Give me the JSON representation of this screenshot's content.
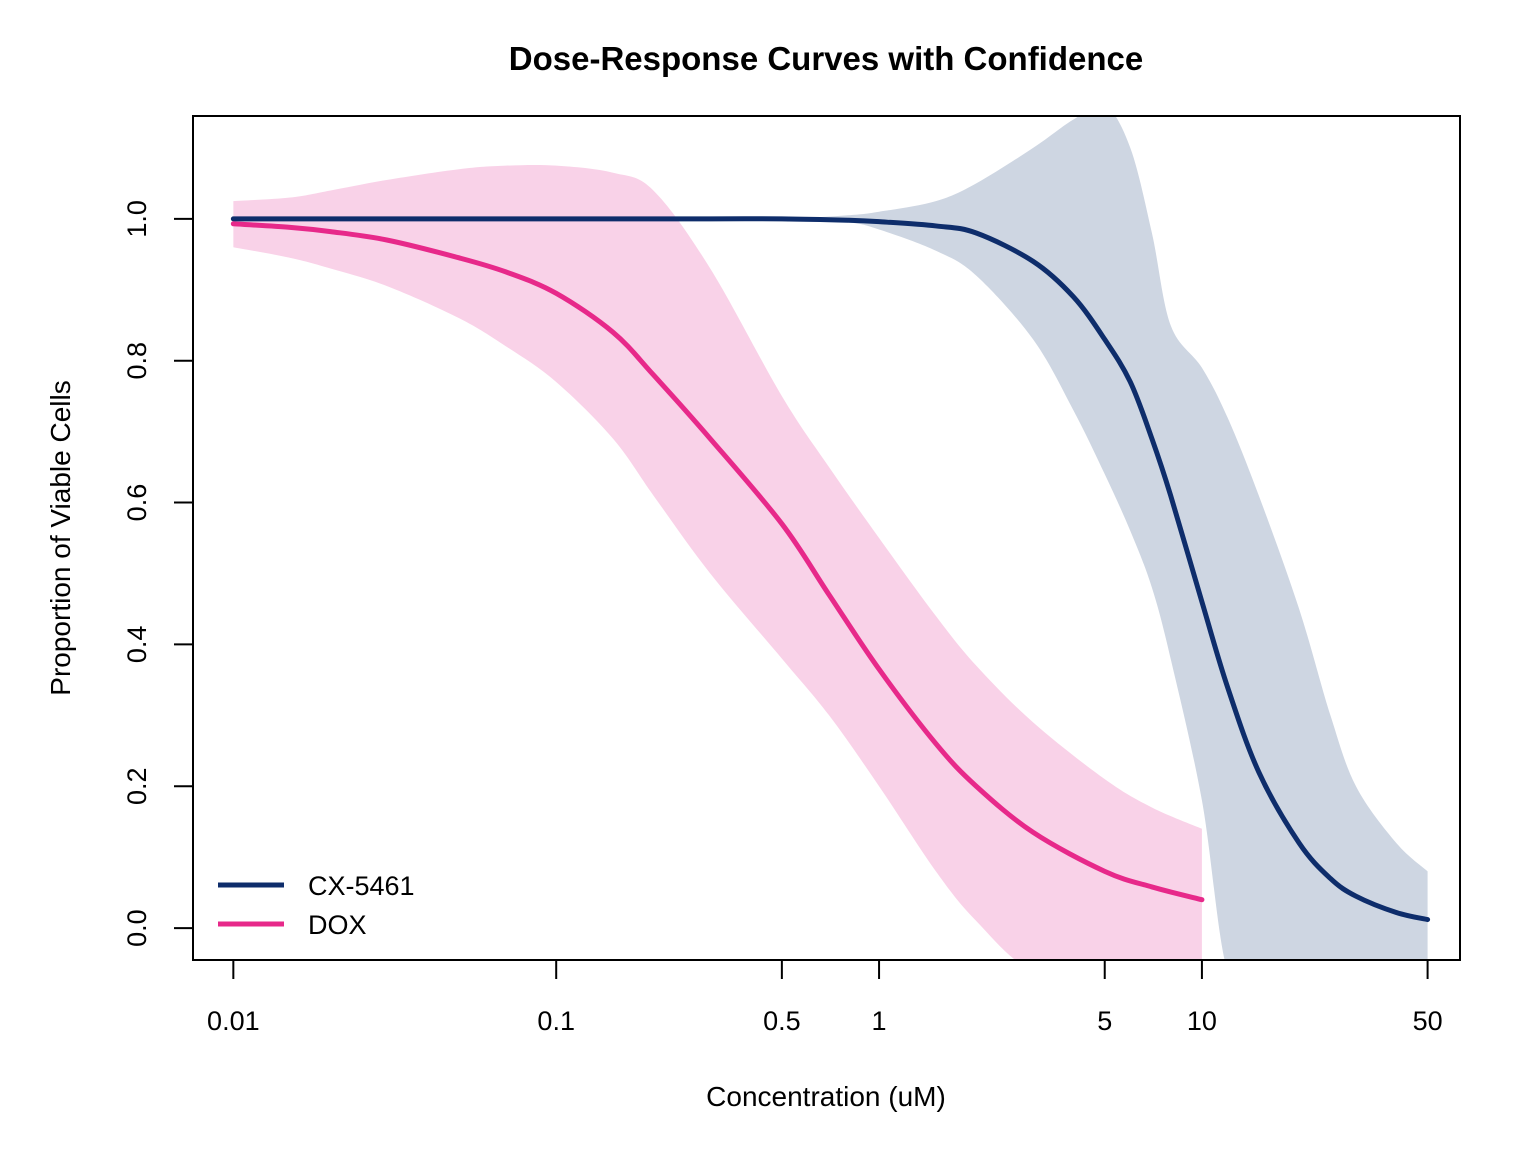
{
  "chart_data": {
    "type": "line",
    "title": "Dose-Response Curves with Confidence",
    "xlabel": "Concentration (uM)",
    "ylabel": "Proportion of Viable Cells",
    "x_scale": "log",
    "xlim": [
      0.0075,
      63
    ],
    "ylim": [
      -0.045,
      1.145
    ],
    "x_ticks": [
      0.01,
      0.1,
      0.5,
      1,
      5,
      10,
      50
    ],
    "x_tick_labels": [
      "0.01",
      "0.1",
      "0.5",
      "1",
      "5",
      "10",
      "50"
    ],
    "y_ticks": [
      0.0,
      0.2,
      0.4,
      0.6,
      0.8,
      1.0
    ],
    "y_tick_labels": [
      "0.0",
      "0.2",
      "0.4",
      "0.6",
      "0.8",
      "1.0"
    ],
    "grid": false,
    "legend_position": "bottom-left",
    "series": [
      {
        "name": "CX-5461",
        "color": "#0e2d6b",
        "band_color": "#ced6e2",
        "x": [
          0.01,
          0.1,
          0.3,
          0.5,
          0.8,
          1,
          1.5,
          2,
          3,
          4,
          5,
          6,
          7,
          8,
          10,
          12,
          15,
          20,
          25,
          30,
          40,
          50
        ],
        "y": [
          1.0,
          1.0,
          1.0,
          1.0,
          0.998,
          0.996,
          0.99,
          0.98,
          0.94,
          0.89,
          0.83,
          0.77,
          0.69,
          0.61,
          0.46,
          0.34,
          0.22,
          0.12,
          0.07,
          0.045,
          0.022,
          0.012
        ],
        "lower": [
          1.0,
          1.0,
          1.0,
          1.0,
          0.995,
          0.985,
          0.955,
          0.92,
          0.83,
          0.73,
          0.64,
          0.56,
          0.48,
          0.38,
          0.18,
          -0.06,
          -0.06,
          -0.06,
          -0.06,
          -0.06,
          -0.06,
          -0.06
        ],
        "upper": [
          1.0,
          1.0,
          1.0,
          1.0,
          1.005,
          1.01,
          1.025,
          1.05,
          1.1,
          1.14,
          1.16,
          1.1,
          0.98,
          0.85,
          0.79,
          0.72,
          0.61,
          0.45,
          0.3,
          0.2,
          0.12,
          0.08
        ]
      },
      {
        "name": "DOX",
        "color": "#e7298a",
        "band_color": "#f9d2e8",
        "x": [
          0.01,
          0.015,
          0.02,
          0.03,
          0.05,
          0.07,
          0.1,
          0.15,
          0.2,
          0.3,
          0.5,
          0.7,
          1,
          1.5,
          2,
          3,
          5,
          7,
          10
        ],
        "y": [
          0.993,
          0.988,
          0.982,
          0.97,
          0.945,
          0.925,
          0.895,
          0.84,
          0.78,
          0.69,
          0.57,
          0.47,
          0.365,
          0.26,
          0.2,
          0.135,
          0.08,
          0.058,
          0.04
        ],
        "lower": [
          0.96,
          0.945,
          0.93,
          0.905,
          0.86,
          0.82,
          0.77,
          0.69,
          0.61,
          0.5,
          0.38,
          0.3,
          0.2,
          0.08,
          0.01,
          -0.06,
          -0.06,
          -0.06,
          -0.06
        ],
        "upper": [
          1.025,
          1.03,
          1.04,
          1.055,
          1.07,
          1.075,
          1.075,
          1.065,
          1.04,
          0.93,
          0.75,
          0.65,
          0.55,
          0.44,
          0.37,
          0.29,
          0.21,
          0.17,
          0.14
        ]
      }
    ]
  }
}
